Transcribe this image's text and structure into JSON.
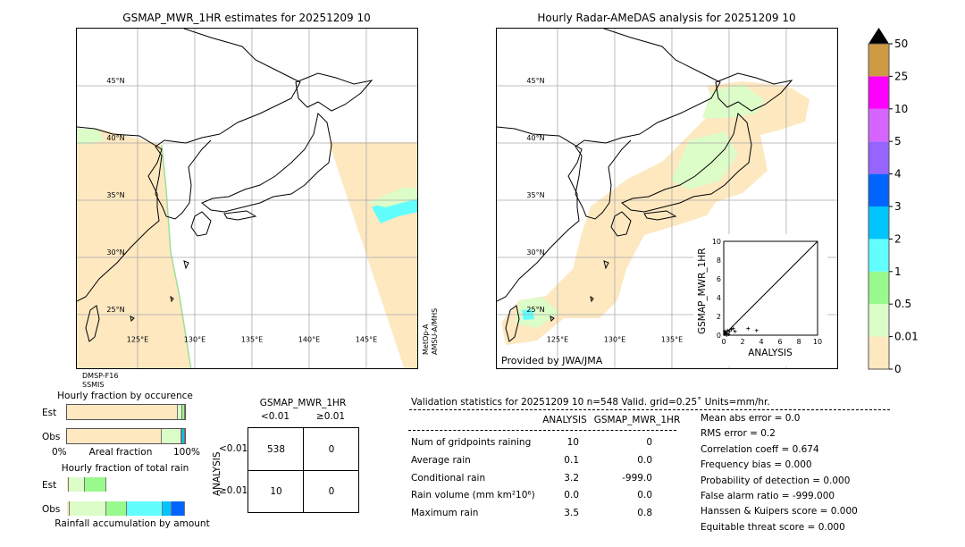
{
  "left_map": {
    "title": "GSMAP_MWR_1HR estimates for 20251209 10",
    "sensor_bottom": [
      "DMSP-F16",
      "SSMIS"
    ],
    "sensor_right": [
      "MetOp-A",
      "AMSU-A/MHS"
    ]
  },
  "right_map": {
    "title": "Hourly Radar-AMeDAS analysis for 20251209 10",
    "credit": "Provided by JWA/JMA"
  },
  "map_grid": {
    "lat_labels": [
      "45°N",
      "40°N",
      "35°N",
      "30°N",
      "25°N"
    ],
    "lats": [
      45,
      40,
      35,
      30,
      25
    ],
    "lon_labels": [
      "125°E",
      "130°E",
      "135°E",
      "140°E",
      "145°E"
    ],
    "lons": [
      125,
      130,
      135,
      140,
      145
    ]
  },
  "colors": {
    "c0": "#fde8c0",
    "c001": "#dcfcc8",
    "c05": "#98fa8c",
    "c1": "#62fefe",
    "c2": "#00c4fe",
    "c3": "#0064fe",
    "c4": "#9664fe",
    "c5": "#d664fe",
    "c10": "#fe00fe",
    "c25": "#cf9a44",
    "c50": "#000000"
  },
  "chart_data": [
    {
      "type": "colorbar",
      "tick_labels": [
        "0",
        "0.01",
        "0.5",
        "1",
        "2",
        "3",
        "4",
        "5",
        "10",
        "25",
        "50"
      ],
      "colors": [
        "#fde8c0",
        "#dcfcc8",
        "#98fa8c",
        "#62fefe",
        "#00c4fe",
        "#0064fe",
        "#9664fe",
        "#d664fe",
        "#fe00fe",
        "#cf9a44"
      ],
      "extend": "max"
    },
    {
      "type": "scatter",
      "xlabel": "ANALYSIS",
      "ylabel": "GSMAP_MWR_1HR",
      "xlim": [
        0,
        10
      ],
      "ylim": [
        0,
        10
      ],
      "xticks": [
        "0",
        "2",
        "4",
        "6",
        "8",
        "10"
      ],
      "yticks": [
        "0",
        "2",
        "4",
        "6",
        "8",
        "10"
      ],
      "diagonal": true,
      "points": [
        [
          0.1,
          0.1
        ],
        [
          0.2,
          0.3
        ],
        [
          0.3,
          0.2
        ],
        [
          0.4,
          0.5
        ],
        [
          0.5,
          0.1
        ],
        [
          0.6,
          0.4
        ],
        [
          0.8,
          0.6
        ],
        [
          1.0,
          0.7
        ],
        [
          1.2,
          0.4
        ],
        [
          0.3,
          0.0
        ],
        [
          0.1,
          0.4
        ],
        [
          2.6,
          0.7
        ],
        [
          3.5,
          0.5
        ]
      ]
    },
    {
      "type": "bar",
      "title": "Hourly fraction by occurence",
      "xlabel": "Areal fraction",
      "xtick_labels": [
        "0%",
        "100%"
      ],
      "categories": [
        "Est",
        "Obs"
      ],
      "stacked_percent": {
        "Est": [
          {
            "c": "#fde8c0",
            "v": 94
          },
          {
            "c": "#dcfcc8",
            "v": 3.7
          },
          {
            "c": "#98fa8c",
            "v": 2.3
          }
        ],
        "Obs": [
          {
            "c": "#fde8c0",
            "v": 80
          },
          {
            "c": "#dcfcc8",
            "v": 17
          },
          {
            "c": "#00a0a0",
            "v": 1
          },
          {
            "c": "#00c4fe",
            "v": 2
          }
        ]
      }
    },
    {
      "type": "bar",
      "title": "Hourly fraction of total rain",
      "xlabel": "Rainfall accumulation by amount",
      "categories": [
        "Est",
        "Obs"
      ],
      "stacked_percent": {
        "Est": [
          {
            "c": "#fde8c0",
            "v": 1.5
          },
          {
            "c": "#dcfcc8",
            "v": 13.75
          },
          {
            "c": "#98fa8c",
            "v": 17.75
          }
        ],
        "Obs": [
          {
            "c": "#fde8c0",
            "v": 2
          },
          {
            "c": "#dcfcc8",
            "v": 31.25
          },
          {
            "c": "#98fa8c",
            "v": 17.25
          },
          {
            "c": "#62fefe",
            "v": 30.75
          },
          {
            "c": "#00c4fe",
            "v": 7.5
          },
          {
            "c": "#0064fe",
            "v": 11.25
          }
        ]
      }
    },
    {
      "type": "table",
      "title": "GSMAP_MWR_1HR",
      "col_labels": [
        "<0.01",
        "≥0.01"
      ],
      "row_title": "ANALYSIS",
      "row_labels": [
        "<0.01",
        "≥0.01"
      ],
      "cells": [
        [
          "538",
          "0"
        ],
        [
          "10",
          "0"
        ]
      ]
    }
  ],
  "stats": {
    "header": "Validation statistics for 20251209 10  n=548 Valid. grid=0.25˚ Units=mm/hr.",
    "col_analysis": "ANALYSIS",
    "col_gsmap": "GSMAP_MWR_1HR",
    "rows": [
      {
        "label": "Num of gridpoints raining",
        "analysis": "10",
        "gsmap": "0"
      },
      {
        "label": "Average rain",
        "analysis": "0.1",
        "gsmap": "0.0"
      },
      {
        "label": "Conditional rain",
        "analysis": "3.2",
        "gsmap": "-999.0"
      },
      {
        "label": "Rain volume (mm km²10⁶)",
        "analysis": "0.0",
        "gsmap": "0.0"
      },
      {
        "label": "Maximum rain",
        "analysis": "3.5",
        "gsmap": "0.8"
      }
    ],
    "scores": [
      "Mean abs error =    0.0",
      "RMS error =    0.2",
      "Correlation coeff =  0.674",
      "Frequency bias =  0.000",
      "Probability of detection =  0.000",
      "False alarm ratio = -999.000",
      "Hanssen & Kuipers score =  0.000",
      "Equitable threat score =  0.000"
    ]
  }
}
